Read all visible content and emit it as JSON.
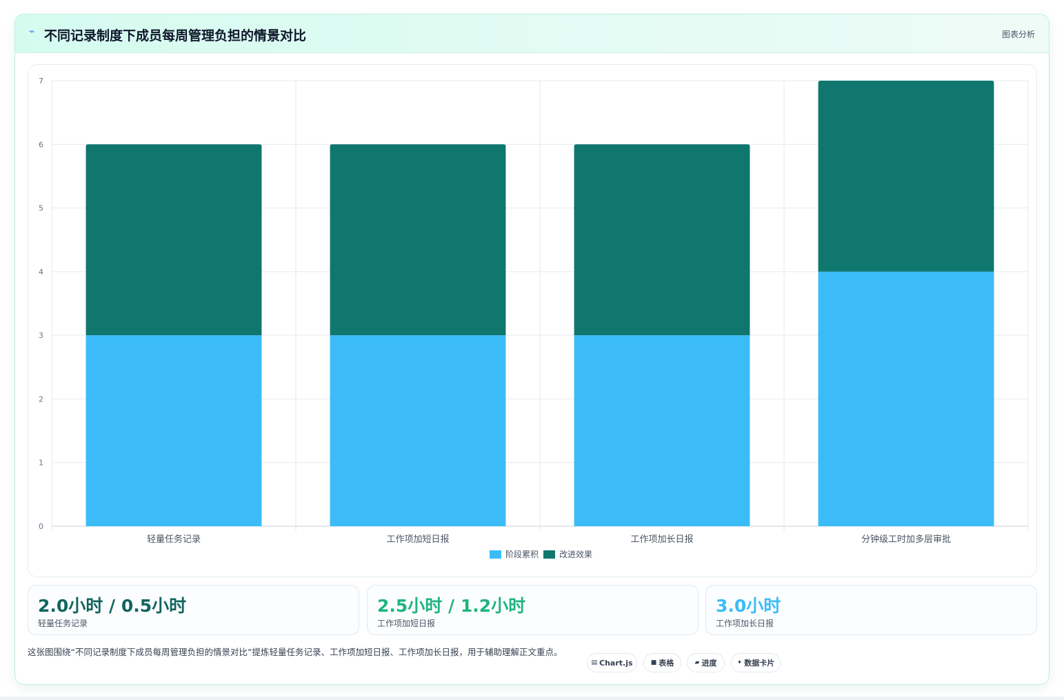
{
  "header": {
    "icon": "sparkline-icon",
    "title": "不同记录制度下成员每周管理负担的情景对比",
    "tag": "图表分析"
  },
  "colors": {
    "series_1": "#3bbcf8",
    "series_2": "#10776f",
    "accent_dark": "#12655f",
    "accent_green": "#1fb57e",
    "accent_blue": "#3bbcf8"
  },
  "chart_data": {
    "type": "bar",
    "stacked": true,
    "categories": [
      "轻量任务记录",
      "工作项加短日报",
      "工作项加长日报",
      "分钟级工时加多层审批"
    ],
    "series": [
      {
        "name": "阶段累积",
        "values": [
          3,
          3,
          3,
          4
        ]
      },
      {
        "name": "改进效果",
        "values": [
          3,
          3,
          3,
          3
        ]
      }
    ],
    "ylim": [
      0,
      7
    ],
    "yticks": [
      "0",
      "1",
      "2",
      "3",
      "4",
      "5",
      "6",
      "7"
    ],
    "grid": true,
    "legend": "bottom-center"
  },
  "stats": [
    {
      "value": "2.0小时 / 0.5小时",
      "label": "轻量任务记录"
    },
    {
      "value": "2.5小时 / 1.2小时",
      "label": "工作项加短日报"
    },
    {
      "value": "3.0小时",
      "label": "工作项加长日报"
    }
  ],
  "footnote": "这张图围绕“不同记录制度下成员每周管理负担的情景对比”提炼轻量任务记录、工作项加短日报、工作项加长日报，用于辅助理解正文重点。",
  "chips": [
    {
      "icon": "chart-icon",
      "glyph": "▤",
      "label": "Chart.js"
    },
    {
      "icon": "table-icon",
      "glyph": "■",
      "label": "表格"
    },
    {
      "icon": "progress-icon",
      "glyph": "▰",
      "label": "进度"
    },
    {
      "icon": "sparkle-icon",
      "glyph": "✦",
      "label": "数据卡片"
    }
  ]
}
